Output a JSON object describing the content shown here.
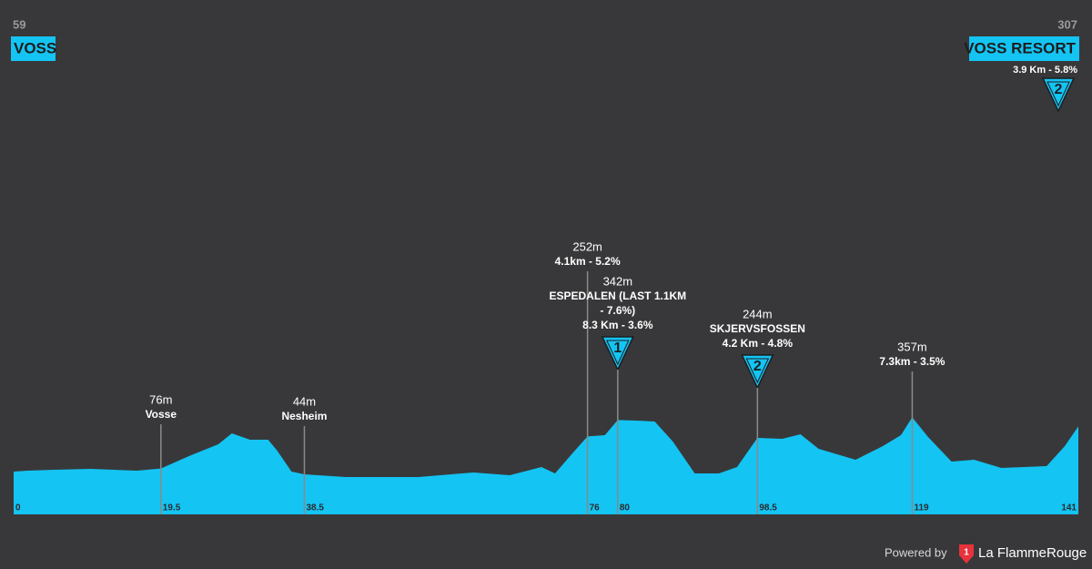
{
  "chart_data": {
    "type": "area",
    "color": "#14c4f3",
    "xlim": [
      0,
      141
    ],
    "ylim": [
      -176,
      1350
    ],
    "xticks": [
      0,
      19.5,
      38.5,
      76,
      80,
      98.5,
      119,
      141
    ],
    "x": [
      0,
      1.8,
      5.4,
      10.2,
      16.3,
      19.5,
      23.5,
      27.1,
      28.9,
      31.3,
      33.7,
      34.9,
      36.8,
      38.5,
      44,
      53.6,
      60.9,
      65.7,
      69.9,
      71.7,
      74.1,
      76,
      78.3,
      80,
      82.5,
      84.9,
      87.3,
      90.2,
      93.4,
      95.8,
      98.5,
      101.8,
      104.2,
      106.6,
      111.5,
      115.1,
      117.5,
      119,
      121.1,
      124.2,
      127.2,
      130.8,
      136.8,
      139.2,
      141
    ],
    "values": [
      59,
      64,
      69,
      74,
      64,
      76,
      149,
      209,
      269,
      234,
      234,
      174,
      59,
      44,
      29,
      29,
      54,
      39,
      84,
      49,
      164,
      252,
      259,
      342,
      339,
      334,
      224,
      49,
      49,
      84,
      244,
      239,
      264,
      184,
      124,
      199,
      259,
      357,
      249,
      114,
      124,
      79,
      89,
      199,
      307
    ],
    "start": {
      "value": 59,
      "name": "VOSS"
    },
    "finish": {
      "value": 307,
      "name": "VOSS RESORT",
      "climb": "3.9 Km - 5.8%",
      "category": 2
    },
    "annotations": [
      {
        "x": 19.5,
        "value": 76,
        "value_label": "76m",
        "lines": [
          "Vosse"
        ]
      },
      {
        "x": 38.5,
        "value": 44,
        "value_label": "44m",
        "lines": [
          "Nesheim"
        ]
      },
      {
        "x": 76,
        "value": 252,
        "value_label": "252m",
        "lines": [
          "4.1km - 5.2%"
        ]
      },
      {
        "x": 80,
        "value": 342,
        "value_label": "342m",
        "lines": [
          "ESPEDALEN (LAST 1.1KM",
          "- 7.6%)",
          "8.3 Km - 3.6%"
        ],
        "category": 1
      },
      {
        "x": 98.5,
        "value": 244,
        "value_label": "244m",
        "lines": [
          "SKJERVSFOSSEN",
          "4.2 Km - 4.8%"
        ],
        "category": 2
      },
      {
        "x": 119,
        "value": 357,
        "value_label": "357m",
        "lines": [
          "7.3km - 3.5%"
        ]
      }
    ]
  },
  "footer": {
    "text": "Powered by",
    "logo": "1",
    "brand": "La FlammeRouge"
  }
}
